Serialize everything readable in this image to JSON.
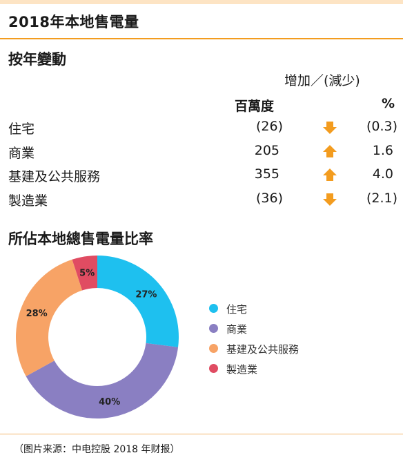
{
  "title": "2018年本地售電量",
  "change_section": {
    "heading": "按年變動",
    "group_header": "增加／(減少)",
    "col_value": "百萬度",
    "col_pct": "%",
    "rows": [
      {
        "label": "住宅",
        "value": "(26)",
        "pct": "(0.3)",
        "direction": "down"
      },
      {
        "label": "商業",
        "value": "205",
        "pct": "1.6",
        "direction": "up"
      },
      {
        "label": "基建及公共服務",
        "value": "355",
        "pct": "4.0",
        "direction": "up"
      },
      {
        "label": "製造業",
        "value": "(36)",
        "pct": "(2.1)",
        "direction": "down"
      }
    ]
  },
  "share_section": {
    "heading": "所佔本地總售電量比率"
  },
  "chart_data": {
    "type": "pie",
    "donut": true,
    "legend_position": "right",
    "slices": [
      {
        "label": "住宅",
        "value": 27,
        "display": "27%",
        "color": "#1ec0ef"
      },
      {
        "label": "商業",
        "value": 40,
        "display": "40%",
        "color": "#8a7fc2"
      },
      {
        "label": "基建及公共服務",
        "value": 28,
        "display": "28%",
        "color": "#f7a366"
      },
      {
        "label": "製造業",
        "value": 5,
        "display": "5%",
        "color": "#e04c62"
      }
    ]
  },
  "colors": {
    "accent": "#f39c1f",
    "arrow": "#f39c1f"
  },
  "footer": "（图片来源：中电控股 2018 年财报）"
}
